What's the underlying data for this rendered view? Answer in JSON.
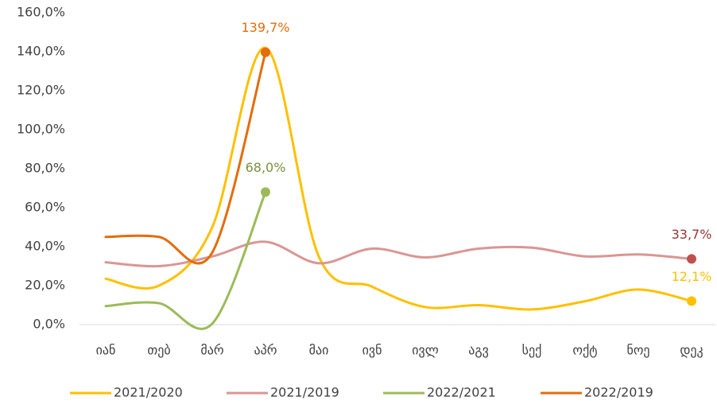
{
  "chart_data": {
    "type": "line",
    "categories": [
      "იან",
      "თებ",
      "მარ",
      "აპრ",
      "მაი",
      "ივნ",
      "ივლ",
      "აგვ",
      "სექ",
      "ოქტ",
      "ნოე",
      "დეკ"
    ],
    "series": [
      {
        "name": "2021/2020",
        "color": "#FFC000",
        "marker_color": "#FFC000",
        "label_color": "#FFC000",
        "values": [
          23.5,
          20,
          50,
          142,
          35,
          19.5,
          9,
          10,
          7.8,
          12,
          18,
          12.1
        ],
        "value_labels": [
          null,
          null,
          null,
          null,
          null,
          null,
          null,
          null,
          null,
          null,
          null,
          "12,1%"
        ]
      },
      {
        "name": "2021/2019",
        "color": "#DA9694",
        "marker_color": "#C0504D",
        "label_color": "#943634",
        "values": [
          32,
          30,
          35,
          42.5,
          31.5,
          39,
          34.5,
          39,
          39.5,
          35,
          36,
          33.7
        ],
        "value_labels": [
          null,
          null,
          null,
          null,
          null,
          null,
          null,
          null,
          null,
          null,
          null,
          "33,7%"
        ]
      },
      {
        "name": "2022/2021",
        "color": "#9BBB59",
        "marker_color": "#9BBB59",
        "label_color": "#76923C",
        "values": [
          9.5,
          11,
          0.5,
          68.0,
          null,
          null,
          null,
          null,
          null,
          null,
          null,
          null
        ],
        "value_labels": [
          null,
          null,
          null,
          "68,0%",
          null,
          null,
          null,
          null,
          null,
          null,
          null,
          null
        ]
      },
      {
        "name": "2022/2019",
        "color": "#E46C0A",
        "marker_color": "#E46C0A",
        "label_color": "#E46C0A",
        "values": [
          45,
          45,
          37,
          139.7,
          null,
          null,
          null,
          null,
          null,
          null,
          null,
          null
        ],
        "value_labels": [
          null,
          null,
          null,
          "139,7%",
          null,
          null,
          null,
          null,
          null,
          null,
          null,
          null
        ]
      }
    ],
    "ylim": [
      0,
      160
    ],
    "yticks": [
      {
        "value": 0,
        "label": "0,0%"
      },
      {
        "value": 20,
        "label": "20,0%"
      },
      {
        "value": 40,
        "label": "40,0%"
      },
      {
        "value": 60,
        "label": "60,0%"
      },
      {
        "value": 80,
        "label": "80,0%"
      },
      {
        "value": 100,
        "label": "100,0%"
      },
      {
        "value": 120,
        "label": "120,0%"
      },
      {
        "value": 140,
        "label": "140,0%"
      },
      {
        "value": 160,
        "label": "160,0%"
      }
    ],
    "grid": false,
    "legend": "bottom"
  }
}
